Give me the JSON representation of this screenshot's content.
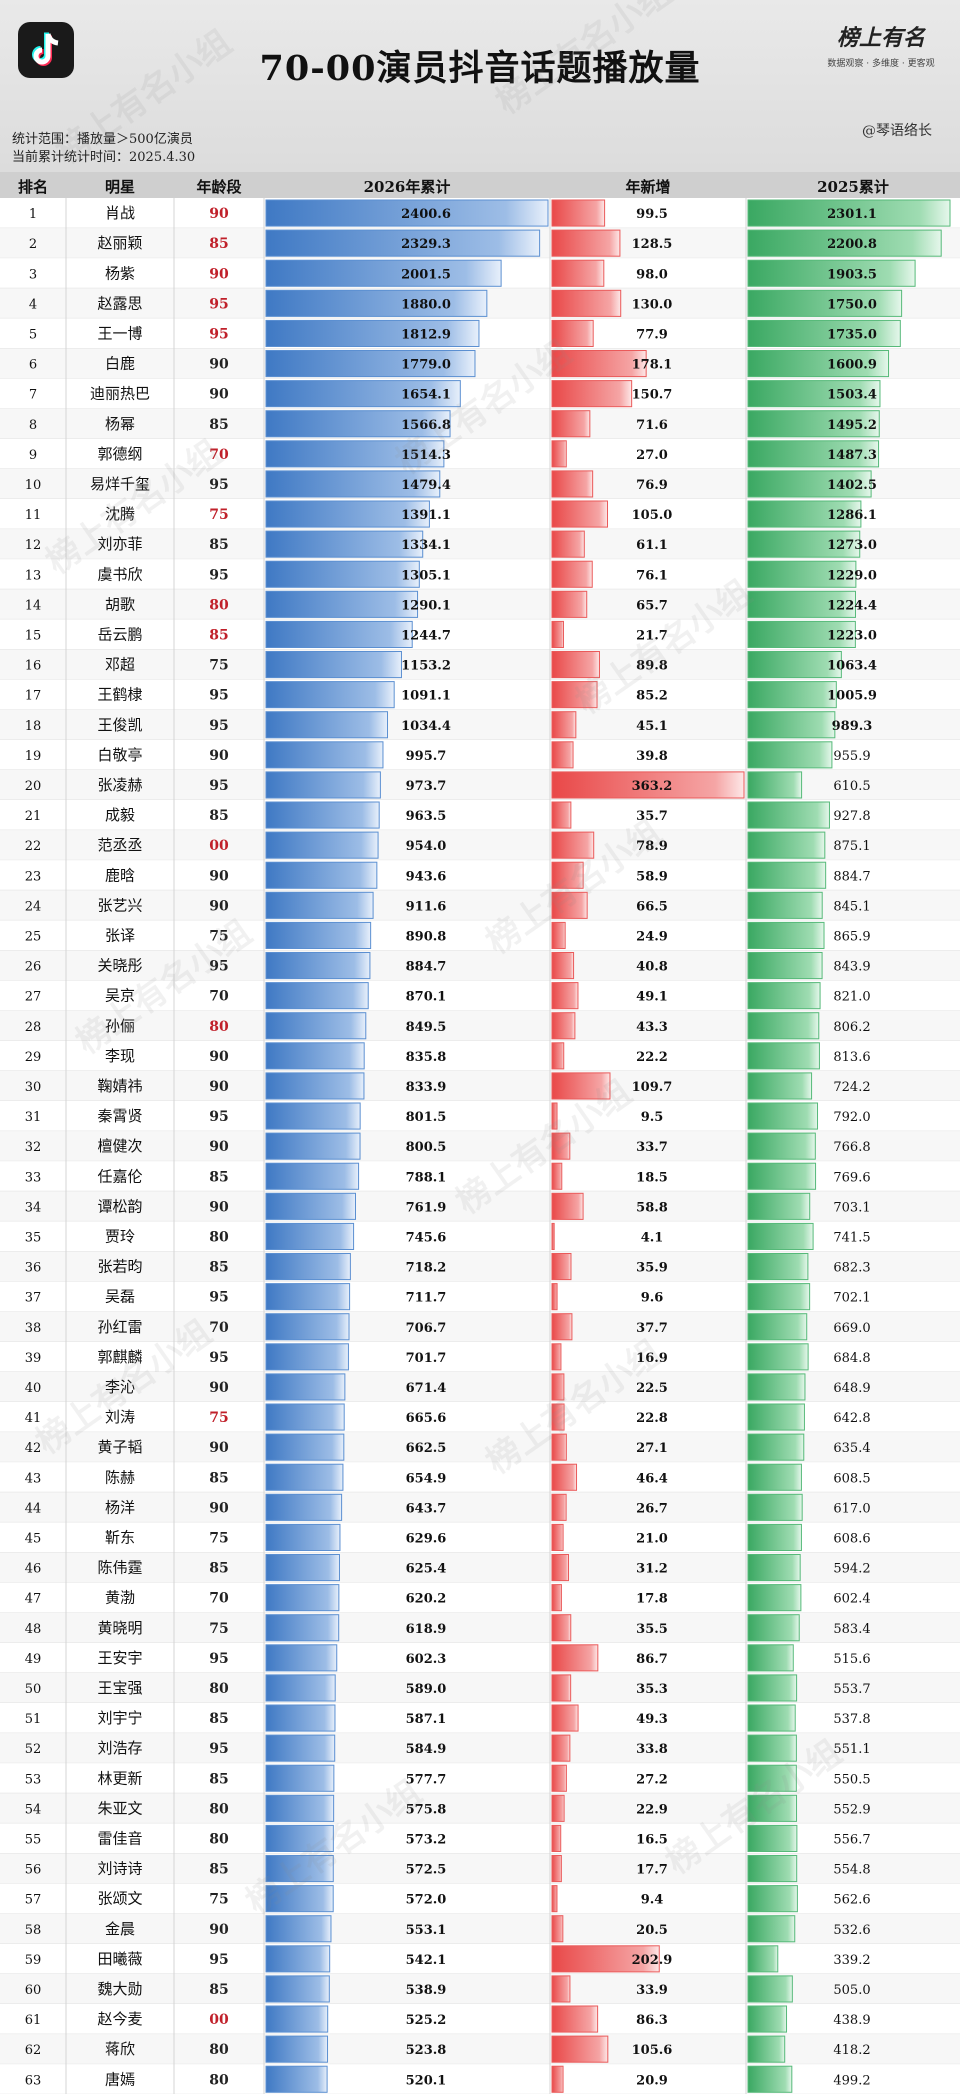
{
  "header": {
    "title": "70-00演员抖音话题播放量",
    "scope": "统计范围：播放量＞500亿演员",
    "stat_time": "当前累计统计时间：2025.4.30",
    "author": "@琴语络长",
    "brand_title": "榜上有名",
    "brand_sub": "数据观察 · 多维度 · 更客观",
    "watermark": "榜上有名小组"
  },
  "colors": {
    "blue_bar": "#5b8fd1",
    "red_bar": "#ea5a5a",
    "green_bar": "#56b979",
    "age_highlight": "#c0202a"
  },
  "chart_data": {
    "type": "bar",
    "columns": [
      "排名",
      "明星",
      "年龄段",
      "2026年累计",
      "年新增",
      "2025累计"
    ],
    "highlight_ages": [
      "70",
      "75",
      "80",
      "85",
      "90",
      "95",
      "00"
    ],
    "rows": [
      {
        "rank": "1",
        "name": "肖战",
        "age": "90",
        "hl": true,
        "total_2026": 2400.6,
        "new": 99.5,
        "total_2025": 2301.1
      },
      {
        "rank": "2",
        "name": "赵丽颖",
        "age": "85",
        "hl": true,
        "total_2026": 2329.3,
        "new": 128.5,
        "total_2025": 2200.8
      },
      {
        "rank": "3",
        "name": "杨紫",
        "age": "90",
        "hl": true,
        "total_2026": 2001.5,
        "new": 98.0,
        "total_2025": 1903.5
      },
      {
        "rank": "4",
        "name": "赵露思",
        "age": "95",
        "hl": true,
        "total_2026": 1880.0,
        "new": 130.0,
        "total_2025": 1750.0
      },
      {
        "rank": "5",
        "name": "王一博",
        "age": "95",
        "hl": true,
        "total_2026": 1812.9,
        "new": 77.9,
        "total_2025": 1735.0
      },
      {
        "rank": "6",
        "name": "白鹿",
        "age": "90",
        "hl": false,
        "total_2026": 1779.0,
        "new": 178.1,
        "total_2025": 1600.9
      },
      {
        "rank": "7",
        "name": "迪丽热巴",
        "age": "90",
        "hl": false,
        "total_2026": 1654.1,
        "new": 150.7,
        "total_2025": 1503.4
      },
      {
        "rank": "8",
        "name": "杨幂",
        "age": "85",
        "hl": false,
        "total_2026": 1566.8,
        "new": 71.6,
        "total_2025": 1495.2
      },
      {
        "rank": "9",
        "name": "郭德纲",
        "age": "70",
        "hl": true,
        "total_2026": 1514.3,
        "new": 27.0,
        "total_2025": 1487.3
      },
      {
        "rank": "10",
        "name": "易烊千玺",
        "age": "95",
        "hl": false,
        "total_2026": 1479.4,
        "new": 76.9,
        "total_2025": 1402.5
      },
      {
        "rank": "11",
        "name": "沈腾",
        "age": "75",
        "hl": true,
        "total_2026": 1391.1,
        "new": 105.0,
        "total_2025": 1286.1
      },
      {
        "rank": "12",
        "name": "刘亦菲",
        "age": "85",
        "hl": false,
        "total_2026": 1334.1,
        "new": 61.1,
        "total_2025": 1273.0
      },
      {
        "rank": "13",
        "name": "虞书欣",
        "age": "95",
        "hl": false,
        "total_2026": 1305.1,
        "new": 76.1,
        "total_2025": 1229.0
      },
      {
        "rank": "14",
        "name": "胡歌",
        "age": "80",
        "hl": true,
        "total_2026": 1290.1,
        "new": 65.7,
        "total_2025": 1224.4
      },
      {
        "rank": "15",
        "name": "岳云鹏",
        "age": "85",
        "hl": true,
        "total_2026": 1244.7,
        "new": 21.7,
        "total_2025": 1223.0
      },
      {
        "rank": "16",
        "name": "邓超",
        "age": "75",
        "hl": false,
        "total_2026": 1153.2,
        "new": 89.8,
        "total_2025": 1063.4
      },
      {
        "rank": "17",
        "name": "王鹤棣",
        "age": "95",
        "hl": false,
        "total_2026": 1091.1,
        "new": 85.2,
        "total_2025": 1005.9
      },
      {
        "rank": "18",
        "name": "王俊凯",
        "age": "95",
        "hl": false,
        "total_2026": 1034.4,
        "new": 45.1,
        "total_2025": 989.3
      },
      {
        "rank": "19",
        "name": "白敬亭",
        "age": "90",
        "hl": false,
        "total_2026": 995.7,
        "new": 39.8,
        "total_2025": 955.9
      },
      {
        "rank": "20",
        "name": "张凌赫",
        "age": "95",
        "hl": false,
        "total_2026": 973.7,
        "new": 363.2,
        "total_2025": 610.5
      },
      {
        "rank": "21",
        "name": "成毅",
        "age": "85",
        "hl": false,
        "total_2026": 963.5,
        "new": 35.7,
        "total_2025": 927.8
      },
      {
        "rank": "22",
        "name": "范丞丞",
        "age": "00",
        "hl": true,
        "total_2026": 954.0,
        "new": 78.9,
        "total_2025": 875.1
      },
      {
        "rank": "23",
        "name": "鹿晗",
        "age": "90",
        "hl": false,
        "total_2026": 943.6,
        "new": 58.9,
        "total_2025": 884.7
      },
      {
        "rank": "24",
        "name": "张艺兴",
        "age": "90",
        "hl": false,
        "total_2026": 911.6,
        "new": 66.5,
        "total_2025": 845.1
      },
      {
        "rank": "25",
        "name": "张译",
        "age": "75",
        "hl": false,
        "total_2026": 890.8,
        "new": 24.9,
        "total_2025": 865.9
      },
      {
        "rank": "26",
        "name": "关晓彤",
        "age": "95",
        "hl": false,
        "total_2026": 884.7,
        "new": 40.8,
        "total_2025": 843.9
      },
      {
        "rank": "27",
        "name": "吴京",
        "age": "70",
        "hl": false,
        "total_2026": 870.1,
        "new": 49.1,
        "total_2025": 821.0
      },
      {
        "rank": "28",
        "name": "孙俪",
        "age": "80",
        "hl": true,
        "total_2026": 849.5,
        "new": 43.3,
        "total_2025": 806.2
      },
      {
        "rank": "29",
        "name": "李现",
        "age": "90",
        "hl": false,
        "total_2026": 835.8,
        "new": 22.2,
        "total_2025": 813.6
      },
      {
        "rank": "30",
        "name": "鞠婧祎",
        "age": "90",
        "hl": false,
        "total_2026": 833.9,
        "new": 109.7,
        "total_2025": 724.2
      },
      {
        "rank": "31",
        "name": "秦霄贤",
        "age": "95",
        "hl": false,
        "total_2026": 801.5,
        "new": 9.5,
        "total_2025": 792.0
      },
      {
        "rank": "32",
        "name": "檀健次",
        "age": "90",
        "hl": false,
        "total_2026": 800.5,
        "new": 33.7,
        "total_2025": 766.8
      },
      {
        "rank": "33",
        "name": "任嘉伦",
        "age": "85",
        "hl": false,
        "total_2026": 788.1,
        "new": 18.5,
        "total_2025": 769.6
      },
      {
        "rank": "34",
        "name": "谭松韵",
        "age": "90",
        "hl": false,
        "total_2026": 761.9,
        "new": 58.8,
        "total_2025": 703.1
      },
      {
        "rank": "35",
        "name": "贾玲",
        "age": "80",
        "hl": false,
        "total_2026": 745.6,
        "new": 4.1,
        "total_2025": 741.5
      },
      {
        "rank": "36",
        "name": "张若昀",
        "age": "85",
        "hl": false,
        "total_2026": 718.2,
        "new": 35.9,
        "total_2025": 682.3
      },
      {
        "rank": "37",
        "name": "吴磊",
        "age": "95",
        "hl": false,
        "total_2026": 711.7,
        "new": 9.6,
        "total_2025": 702.1
      },
      {
        "rank": "38",
        "name": "孙红雷",
        "age": "70",
        "hl": false,
        "total_2026": 706.7,
        "new": 37.7,
        "total_2025": 669.0
      },
      {
        "rank": "39",
        "name": "郭麒麟",
        "age": "95",
        "hl": false,
        "total_2026": 701.7,
        "new": 16.9,
        "total_2025": 684.8
      },
      {
        "rank": "40",
        "name": "李沁",
        "age": "90",
        "hl": false,
        "total_2026": 671.4,
        "new": 22.5,
        "total_2025": 648.9
      },
      {
        "rank": "41",
        "name": "刘涛",
        "age": "75",
        "hl": true,
        "total_2026": 665.6,
        "new": 22.8,
        "total_2025": 642.8
      },
      {
        "rank": "42",
        "name": "黄子韬",
        "age": "90",
        "hl": false,
        "total_2026": 662.5,
        "new": 27.1,
        "total_2025": 635.4
      },
      {
        "rank": "43",
        "name": "陈赫",
        "age": "85",
        "hl": false,
        "total_2026": 654.9,
        "new": 46.4,
        "total_2025": 608.5
      },
      {
        "rank": "44",
        "name": "杨洋",
        "age": "90",
        "hl": false,
        "total_2026": 643.7,
        "new": 26.7,
        "total_2025": 617.0
      },
      {
        "rank": "45",
        "name": "靳东",
        "age": "75",
        "hl": false,
        "total_2026": 629.6,
        "new": 21.0,
        "total_2025": 608.6
      },
      {
        "rank": "46",
        "name": "陈伟霆",
        "age": "85",
        "hl": false,
        "total_2026": 625.4,
        "new": 31.2,
        "total_2025": 594.2
      },
      {
        "rank": "47",
        "name": "黄渤",
        "age": "70",
        "hl": false,
        "total_2026": 620.2,
        "new": 17.8,
        "total_2025": 602.4
      },
      {
        "rank": "48",
        "name": "黄晓明",
        "age": "75",
        "hl": false,
        "total_2026": 618.9,
        "new": 35.5,
        "total_2025": 583.4
      },
      {
        "rank": "49",
        "name": "王安宇",
        "age": "95",
        "hl": false,
        "total_2026": 602.3,
        "new": 86.7,
        "total_2025": 515.6
      },
      {
        "rank": "50",
        "name": "王宝强",
        "age": "80",
        "hl": false,
        "total_2026": 589.0,
        "new": 35.3,
        "total_2025": 553.7
      },
      {
        "rank": "51",
        "name": "刘宇宁",
        "age": "85",
        "hl": false,
        "total_2026": 587.1,
        "new": 49.3,
        "total_2025": 537.8
      },
      {
        "rank": "52",
        "name": "刘浩存",
        "age": "95",
        "hl": false,
        "total_2026": 584.9,
        "new": 33.8,
        "total_2025": 551.1
      },
      {
        "rank": "53",
        "name": "林更新",
        "age": "85",
        "hl": false,
        "total_2026": 577.7,
        "new": 27.2,
        "total_2025": 550.5
      },
      {
        "rank": "54",
        "name": "朱亚文",
        "age": "80",
        "hl": false,
        "total_2026": 575.8,
        "new": 22.9,
        "total_2025": 552.9
      },
      {
        "rank": "55",
        "name": "雷佳音",
        "age": "80",
        "hl": false,
        "total_2026": 573.2,
        "new": 16.5,
        "total_2025": 556.7
      },
      {
        "rank": "56",
        "name": "刘诗诗",
        "age": "85",
        "hl": false,
        "total_2026": 572.5,
        "new": 17.7,
        "total_2025": 554.8
      },
      {
        "rank": "57",
        "name": "张颂文",
        "age": "75",
        "hl": false,
        "total_2026": 572.0,
        "new": 9.4,
        "total_2025": 562.6
      },
      {
        "rank": "58",
        "name": "金晨",
        "age": "90",
        "hl": false,
        "total_2026": 553.1,
        "new": 20.5,
        "total_2025": 532.6
      },
      {
        "rank": "59",
        "name": "田曦薇",
        "age": "95",
        "hl": false,
        "total_2026": 542.1,
        "new": 202.9,
        "total_2025": 339.2
      },
      {
        "rank": "60",
        "name": "魏大勋",
        "age": "85",
        "hl": false,
        "total_2026": 538.9,
        "new": 33.9,
        "total_2025": 505.0
      },
      {
        "rank": "61",
        "name": "赵今麦",
        "age": "00",
        "hl": true,
        "total_2026": 525.2,
        "new": 86.3,
        "total_2025": 438.9
      },
      {
        "rank": "62",
        "name": "蒋欣",
        "age": "80",
        "hl": false,
        "total_2026": 523.8,
        "new": 105.6,
        "total_2025": 418.2
      },
      {
        "rank": "63",
        "name": "唐嫣",
        "age": "80",
        "hl": false,
        "total_2026": 520.1,
        "new": 20.9,
        "total_2025": 499.2
      }
    ]
  }
}
